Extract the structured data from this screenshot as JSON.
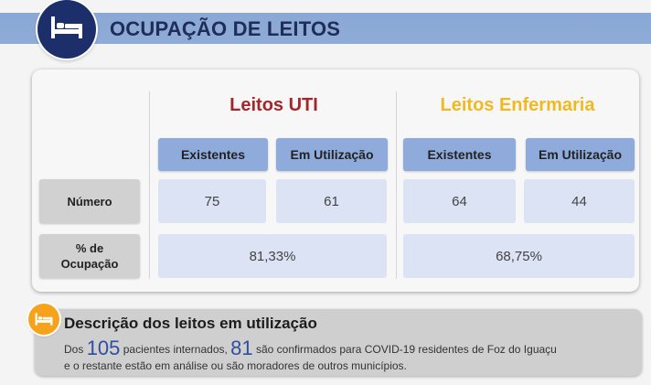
{
  "header": {
    "title": "OCUPAÇÃO DE LEITOS",
    "icon": "bed-icon"
  },
  "table": {
    "groups": [
      {
        "title": "Leitos UTI",
        "color": "#a3262b"
      },
      {
        "title": "Leitos Enfermaria",
        "color": "#f0b91f"
      }
    ],
    "col_heads": [
      "Existentes",
      "Em Utilização",
      "Existentes",
      "Em Utilização"
    ],
    "row_heads": [
      "Número",
      "% de",
      "Ocupação"
    ],
    "numero": [
      "75",
      "61",
      "64",
      "44"
    ],
    "ocupacao": [
      "81,33%",
      "68,75%"
    ]
  },
  "description": {
    "title": "Descrição dos leitos em utilização",
    "w1": "Dos",
    "n1": "105",
    "w2": "pacientes internados,",
    "n2": "81",
    "w3": "são confirmados para COVID-19 residentes de Foz do Iguaçu",
    "line2": "e o restante estão em análise ou são moradores de outros municípios.",
    "icon": "bed-icon"
  }
}
